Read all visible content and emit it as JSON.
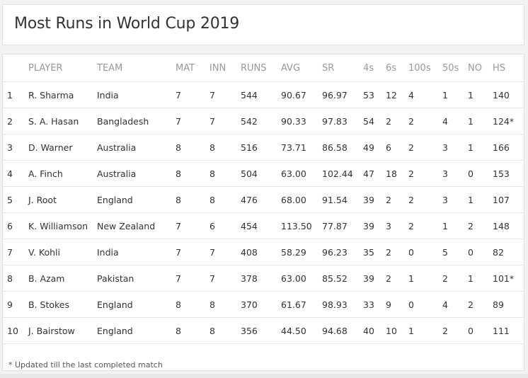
{
  "title": "Most Runs in World Cup 2019",
  "table": {
    "headers": [
      "",
      "PLAYER",
      "TEAM",
      "MAT",
      "INN",
      "RUNS",
      "AVG",
      "SR",
      "4s",
      "6s",
      "100s",
      "50s",
      "NO",
      "HS"
    ],
    "rows": [
      [
        "1",
        "R. Sharma",
        "India",
        "7",
        "7",
        "544",
        "90.67",
        "96.97",
        "53",
        "12",
        "4",
        "1",
        "1",
        "140"
      ],
      [
        "2",
        "S. A. Hasan",
        "Bangladesh",
        "7",
        "7",
        "542",
        "90.33",
        "97.83",
        "54",
        "2",
        "2",
        "4",
        "1",
        "124*"
      ],
      [
        "3",
        "D. Warner",
        "Australia",
        "8",
        "8",
        "516",
        "73.71",
        "86.58",
        "49",
        "6",
        "2",
        "3",
        "1",
        "166"
      ],
      [
        "4",
        "A. Finch",
        "Australia",
        "8",
        "8",
        "504",
        "63.00",
        "102.44",
        "47",
        "18",
        "2",
        "3",
        "0",
        "153"
      ],
      [
        "5",
        "J. Root",
        "England",
        "8",
        "8",
        "476",
        "68.00",
        "91.54",
        "39",
        "2",
        "2",
        "3",
        "1",
        "107"
      ],
      [
        "6",
        "K. Williamson",
        "New Zealand",
        "7",
        "6",
        "454",
        "113.50",
        "77.87",
        "39",
        "3",
        "2",
        "1",
        "2",
        "148"
      ],
      [
        "7",
        "V. Kohli",
        "India",
        "7",
        "7",
        "408",
        "58.29",
        "96.23",
        "35",
        "2",
        "0",
        "5",
        "0",
        "82"
      ],
      [
        "8",
        "B. Azam",
        "Pakistan",
        "7",
        "7",
        "378",
        "63.00",
        "85.52",
        "39",
        "2",
        "1",
        "2",
        "1",
        "101*"
      ],
      [
        "9",
        "B. Stokes",
        "England",
        "8",
        "8",
        "370",
        "61.67",
        "98.93",
        "33",
        "9",
        "0",
        "4",
        "2",
        "89"
      ],
      [
        "10",
        "J. Bairstow",
        "England",
        "8",
        "8",
        "356",
        "44.50",
        "94.68",
        "40",
        "10",
        "1",
        "2",
        "0",
        "111"
      ]
    ]
  },
  "footnote": "* Updated till the last completed match"
}
